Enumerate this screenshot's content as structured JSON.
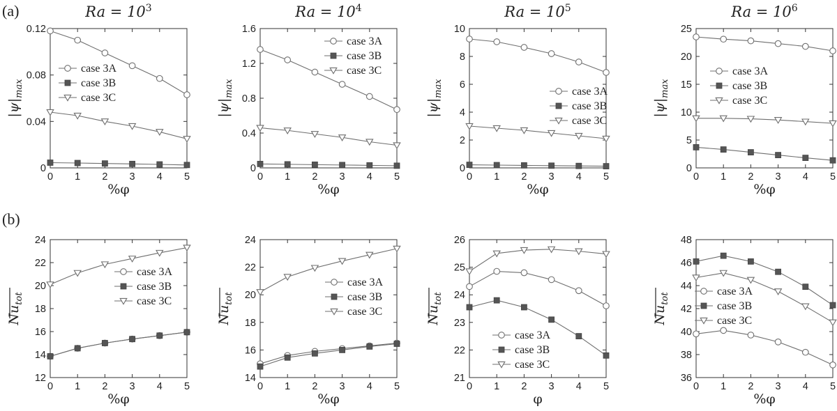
{
  "row_labels": [
    "(a)",
    "(b)"
  ],
  "column_titles": [
    "Ra = 10³",
    "Ra = 10⁴",
    "Ra = 10⁵",
    "Ra = 10⁶"
  ],
  "column_title_parts": [
    {
      "base": "Ra = 10",
      "exp": "3"
    },
    {
      "base": "Ra = 10",
      "exp": "4"
    },
    {
      "base": "Ra = 10",
      "exp": "5"
    },
    {
      "base": "Ra = 10",
      "exp": "6"
    }
  ],
  "colors": {
    "line": "#6e6e6e",
    "filled_marker": "#555555",
    "axis": "#333333",
    "text": "#222222"
  },
  "chart_data": [
    {
      "id": "a1",
      "type": "line",
      "row": "(a)",
      "title": "Ra = 10³",
      "xlabel": "%φ",
      "ylabel": "|ψ|max",
      "ylabel_base": "|ψ|",
      "ylabel_sub": "max",
      "xlim": [
        0,
        5
      ],
      "ylim": [
        0,
        0.12
      ],
      "xticks": [
        0,
        1,
        2,
        3,
        4,
        5
      ],
      "yticks": [
        0,
        0.04,
        0.08,
        0.12
      ],
      "ytick_labels": [
        "0",
        "0.04",
        "0.08",
        "0.12"
      ],
      "legend_position": "middle-left",
      "grid": false,
      "x": [
        0,
        1,
        2,
        3,
        4,
        5
      ],
      "series": [
        {
          "name": "case 3A",
          "marker": "circle",
          "values": [
            0.118,
            0.11,
            0.099,
            0.088,
            0.077,
            0.063
          ]
        },
        {
          "name": "case 3B",
          "marker": "square",
          "values": [
            0.0045,
            0.0042,
            0.0038,
            0.0034,
            0.003,
            0.0025
          ]
        },
        {
          "name": "case 3C",
          "marker": "triangle",
          "values": [
            0.048,
            0.045,
            0.04,
            0.036,
            0.031,
            0.025
          ]
        }
      ]
    },
    {
      "id": "a2",
      "type": "line",
      "row": "(a)",
      "title": "Ra = 10⁴",
      "xlabel": "%φ",
      "ylabel": "|ψ|max",
      "ylabel_base": "|ψ|",
      "ylabel_sub": "max",
      "xlim": [
        0,
        5
      ],
      "ylim": [
        0,
        1.6
      ],
      "xticks": [
        0,
        1,
        2,
        3,
        4,
        5
      ],
      "yticks": [
        0,
        0.4,
        0.8,
        1.2,
        1.6
      ],
      "ytick_labels": [
        "0",
        "0.4",
        "0.8",
        "1.2",
        "1.6"
      ],
      "legend_position": "top-right",
      "grid": false,
      "x": [
        0,
        1,
        2,
        3,
        4,
        5
      ],
      "series": [
        {
          "name": "case 3A",
          "marker": "circle",
          "values": [
            1.36,
            1.24,
            1.1,
            0.96,
            0.82,
            0.67
          ]
        },
        {
          "name": "case 3B",
          "marker": "square",
          "values": [
            0.045,
            0.041,
            0.037,
            0.033,
            0.029,
            0.025
          ]
        },
        {
          "name": "case 3C",
          "marker": "triangle",
          "values": [
            0.46,
            0.43,
            0.39,
            0.35,
            0.3,
            0.26
          ]
        }
      ]
    },
    {
      "id": "a3",
      "type": "line",
      "row": "(a)",
      "title": "Ra = 10⁵",
      "xlabel": "%φ",
      "ylabel": "|ψ|max",
      "ylabel_base": "|ψ|",
      "ylabel_sub": "max",
      "xlim": [
        0,
        5
      ],
      "ylim": [
        0,
        10
      ],
      "xticks": [
        0,
        1,
        2,
        3,
        4,
        5
      ],
      "yticks": [
        0,
        2,
        4,
        6,
        8,
        10
      ],
      "ytick_labels": [
        "0",
        "2",
        "4",
        "6",
        "8",
        "10"
      ],
      "legend_position": "right",
      "grid": false,
      "x": [
        0,
        1,
        2,
        3,
        4,
        5
      ],
      "series": [
        {
          "name": "case 3A",
          "marker": "circle",
          "values": [
            9.25,
            9.05,
            8.65,
            8.2,
            7.6,
            6.85
          ]
        },
        {
          "name": "case 3B",
          "marker": "square",
          "values": [
            0.22,
            0.2,
            0.18,
            0.16,
            0.14,
            0.12
          ]
        },
        {
          "name": "case 3C",
          "marker": "triangle",
          "values": [
            3.0,
            2.85,
            2.7,
            2.5,
            2.3,
            2.1
          ]
        }
      ]
    },
    {
      "id": "a4",
      "type": "line",
      "row": "(a)",
      "title": "Ra = 10⁶",
      "xlabel": "%φ",
      "ylabel": "|ψ|max",
      "ylabel_base": "|ψ|",
      "ylabel_sub": "max",
      "xlim": [
        0,
        5
      ],
      "ylim": [
        0,
        25
      ],
      "xticks": [
        0,
        1,
        2,
        3,
        4,
        5
      ],
      "yticks": [
        0,
        5,
        10,
        15,
        20,
        25
      ],
      "ytick_labels": [
        "0",
        "5",
        "10",
        "15",
        "20",
        "25"
      ],
      "legend_position": "right",
      "grid": false,
      "x": [
        0,
        1,
        2,
        3,
        4,
        5
      ],
      "series": [
        {
          "name": "case 3A",
          "marker": "circle",
          "values": [
            23.5,
            23.1,
            22.8,
            22.3,
            21.8,
            21.0
          ]
        },
        {
          "name": "case 3B",
          "marker": "square",
          "values": [
            3.7,
            3.3,
            2.8,
            2.3,
            1.8,
            1.35
          ]
        },
        {
          "name": "case 3C",
          "marker": "triangle",
          "values": [
            8.9,
            8.9,
            8.8,
            8.6,
            8.3,
            8.0
          ]
        }
      ]
    },
    {
      "id": "b1",
      "type": "line",
      "row": "(b)",
      "xlabel": "%φ",
      "ylabel": "Nu tot",
      "ylabel_base": "Nu",
      "ylabel_sub": "tot",
      "xlim": [
        0,
        5
      ],
      "ylim": [
        12,
        24
      ],
      "xticks": [
        0,
        1,
        2,
        3,
        4,
        5
      ],
      "yticks": [
        12,
        14,
        16,
        18,
        20,
        22,
        24
      ],
      "ytick_labels": [
        "12",
        "14",
        "16",
        "18",
        "20",
        "22",
        "24"
      ],
      "legend_position": "middle-right",
      "grid": false,
      "x": [
        0,
        1,
        2,
        3,
        4,
        5
      ],
      "series": [
        {
          "name": "case 3A",
          "marker": "circle",
          "values": [
            13.85,
            14.55,
            15.0,
            15.35,
            15.65,
            15.95
          ]
        },
        {
          "name": "case 3B",
          "marker": "square",
          "values": [
            13.85,
            14.55,
            15.0,
            15.35,
            15.65,
            15.95
          ]
        },
        {
          "name": "case 3C",
          "marker": "triangle",
          "values": [
            20.1,
            21.1,
            21.85,
            22.35,
            22.85,
            23.3
          ]
        }
      ]
    },
    {
      "id": "b2",
      "type": "line",
      "row": "(b)",
      "xlabel": "%φ",
      "ylabel": "Nu tot",
      "ylabel_base": "Nu",
      "ylabel_sub": "tot",
      "xlim": [
        0,
        5
      ],
      "ylim": [
        14,
        24
      ],
      "xticks": [
        0,
        1,
        2,
        3,
        4,
        5
      ],
      "yticks": [
        14,
        16,
        18,
        20,
        22,
        24
      ],
      "ytick_labels": [
        "14",
        "16",
        "18",
        "20",
        "22",
        "24"
      ],
      "legend_position": "middle-right",
      "grid": false,
      "x": [
        0,
        1,
        2,
        3,
        4,
        5
      ],
      "series": [
        {
          "name": "case 3A",
          "marker": "circle",
          "values": [
            15.0,
            15.6,
            15.9,
            16.1,
            16.3,
            16.5
          ]
        },
        {
          "name": "case 3B",
          "marker": "square",
          "values": [
            14.8,
            15.45,
            15.75,
            16.0,
            16.25,
            16.45
          ]
        },
        {
          "name": "case 3C",
          "marker": "triangle",
          "values": [
            20.2,
            21.3,
            21.95,
            22.45,
            22.9,
            23.35
          ]
        }
      ]
    },
    {
      "id": "b3",
      "type": "line",
      "row": "(b)",
      "xlabel": "φ",
      "ylabel": "Nu tot",
      "ylabel_base": "Nu",
      "ylabel_sub": "tot",
      "xlim": [
        0,
        5
      ],
      "ylim": [
        21,
        26
      ],
      "xticks": [
        0,
        1,
        2,
        3,
        4,
        5
      ],
      "yticks": [
        21,
        22,
        23,
        24,
        25,
        26
      ],
      "ytick_labels": [
        "21",
        "22",
        "23",
        "24",
        "25",
        "26"
      ],
      "legend_position": "bottom-left",
      "grid": false,
      "x": [
        0,
        1,
        2,
        3,
        4,
        5
      ],
      "series": [
        {
          "name": "case 3A",
          "marker": "circle",
          "values": [
            24.3,
            24.85,
            24.8,
            24.55,
            24.15,
            23.6
          ]
        },
        {
          "name": "case 3B",
          "marker": "square",
          "values": [
            23.55,
            23.8,
            23.55,
            23.1,
            22.5,
            21.8
          ]
        },
        {
          "name": "case 3C",
          "marker": "triangle",
          "values": [
            24.85,
            25.5,
            25.62,
            25.65,
            25.58,
            25.48
          ]
        }
      ]
    },
    {
      "id": "b4",
      "type": "line",
      "row": "(b)",
      "xlabel": "%φ",
      "ylabel": "Nu tot",
      "ylabel_base": "Nu",
      "ylabel_sub": "tot",
      "xlim": [
        0,
        5
      ],
      "ylim": [
        36,
        48
      ],
      "xticks": [
        0,
        1,
        2,
        3,
        4,
        5
      ],
      "yticks": [
        36,
        38,
        40,
        42,
        44,
        46,
        48
      ],
      "ytick_labels": [
        "36",
        "38",
        "40",
        "42",
        "44",
        "46",
        "48"
      ],
      "legend_position": "middle-left",
      "grid": false,
      "x": [
        0,
        1,
        2,
        3,
        4,
        5
      ],
      "series": [
        {
          "name": "case 3A",
          "marker": "circle",
          "values": [
            39.8,
            40.1,
            39.7,
            39.1,
            38.2,
            37.1
          ]
        },
        {
          "name": "case 3B",
          "marker": "square",
          "values": [
            46.1,
            46.6,
            46.1,
            45.2,
            43.9,
            42.3
          ]
        },
        {
          "name": "case 3C",
          "marker": "triangle",
          "values": [
            44.7,
            45.1,
            44.5,
            43.5,
            42.2,
            40.8
          ]
        }
      ]
    }
  ]
}
